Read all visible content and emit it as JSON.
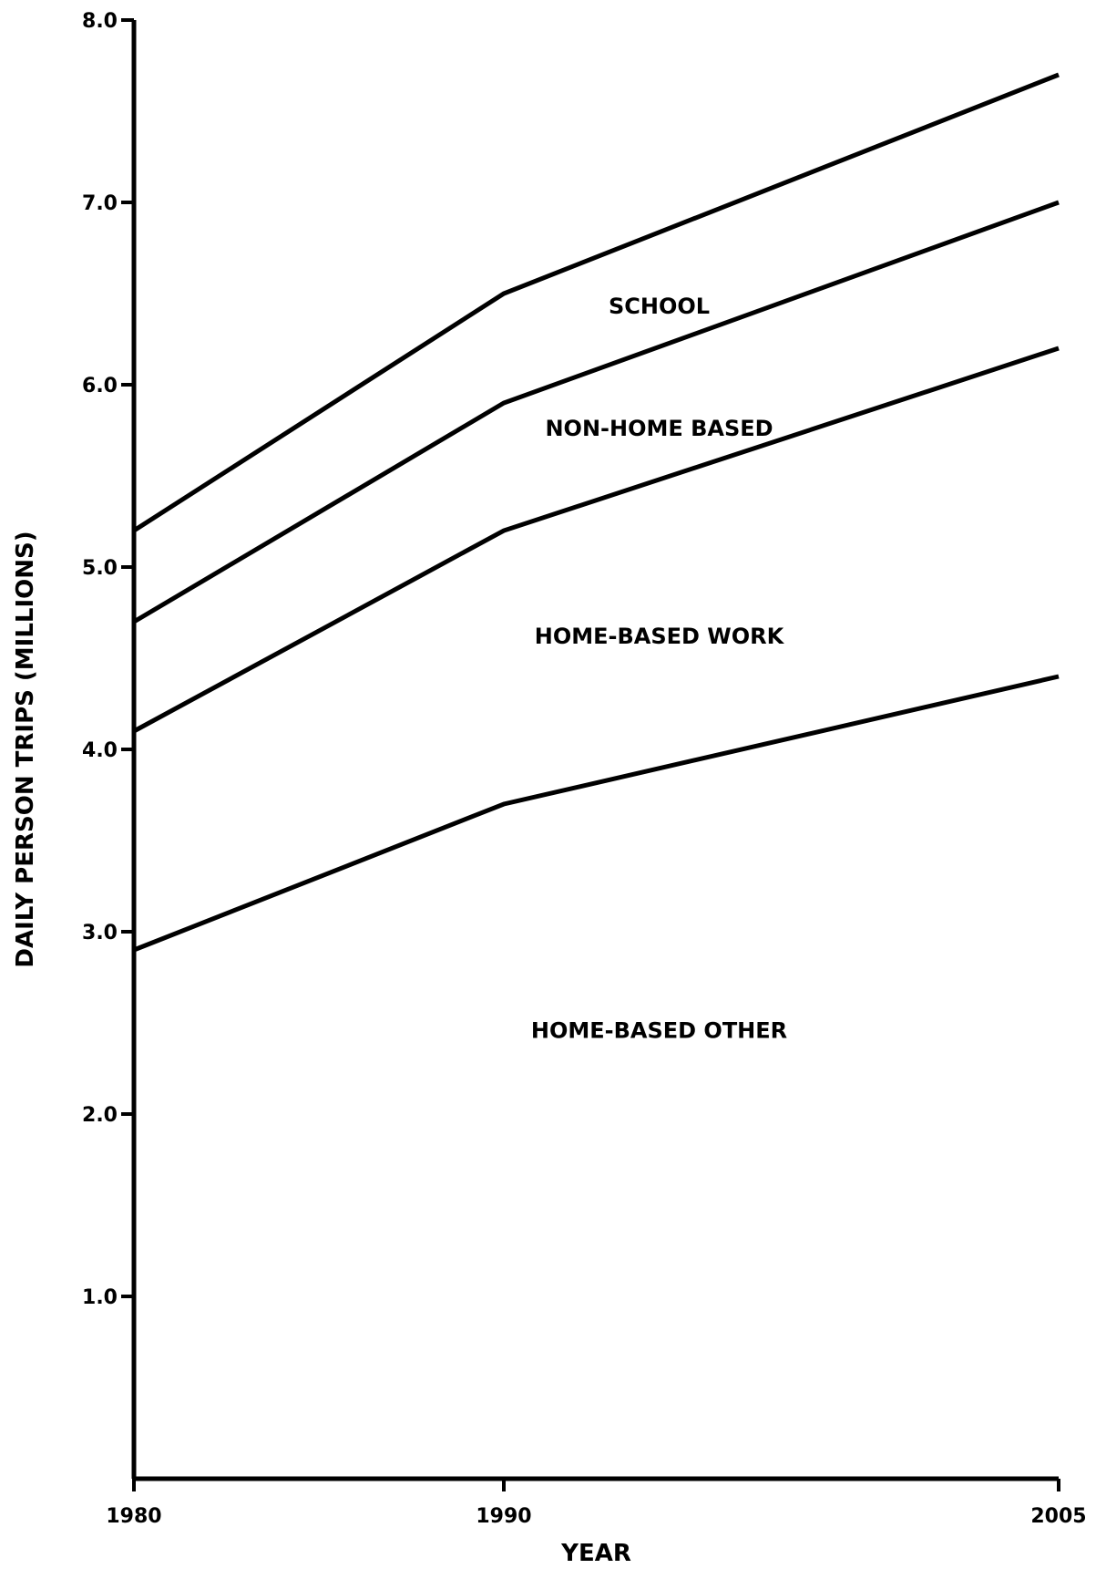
{
  "chart_data": {
    "type": "area",
    "stacked": true,
    "title": "",
    "xlabel": "YEAR",
    "ylabel": "DAILY PERSON TRIPS (MILLIONS)",
    "x": [
      1980,
      1990,
      2005
    ],
    "x_tick_labels": [
      "1980",
      "1990",
      "2005"
    ],
    "ylim": [
      0,
      8.0
    ],
    "y_tick_labels": [
      "1.0",
      "2.0",
      "3.0",
      "4.0",
      "5.0",
      "6.0",
      "7.0",
      "8.0"
    ],
    "grid": false,
    "legend": "none",
    "cumulative_boundaries": [
      {
        "x": [
          1980,
          1990,
          2005
        ],
        "y": [
          2.9,
          3.7,
          4.4
        ]
      },
      {
        "x": [
          1980,
          1990,
          2005
        ],
        "y": [
          4.1,
          5.2,
          6.2
        ]
      },
      {
        "x": [
          1980,
          1990,
          2005
        ],
        "y": [
          4.7,
          5.9,
          7.0
        ]
      },
      {
        "x": [
          1980,
          1990,
          2005
        ],
        "y": [
          5.2,
          6.5,
          7.7
        ]
      }
    ],
    "series": [
      {
        "name": "HOME-BASED OTHER",
        "values": [
          2.9,
          3.7,
          4.4
        ]
      },
      {
        "name": "HOME-BASED WORK",
        "values": [
          1.2,
          1.5,
          1.8
        ]
      },
      {
        "name": "NON-HOME BASED",
        "values": [
          0.6,
          0.7,
          0.8
        ]
      },
      {
        "name": "SCHOOL",
        "values": [
          0.5,
          0.6,
          0.7
        ]
      }
    ],
    "colors": {
      "line": "#000000",
      "background": "#ffffff"
    }
  }
}
